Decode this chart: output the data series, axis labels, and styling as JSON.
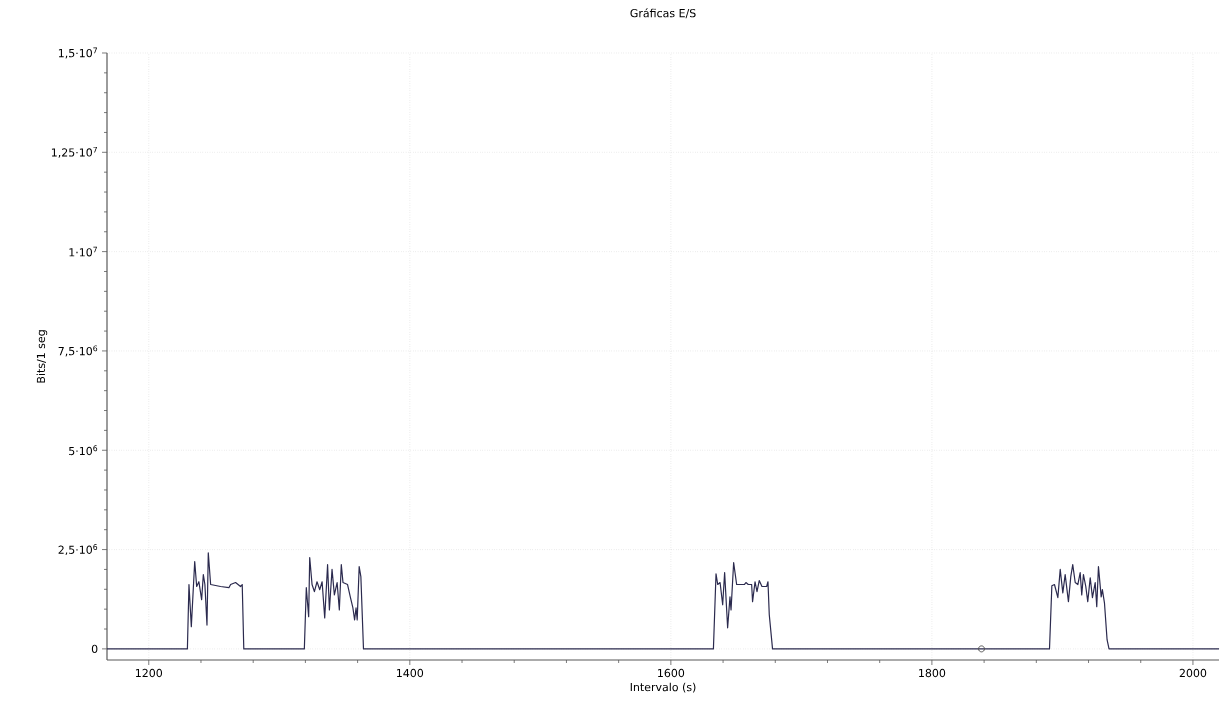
{
  "chart_data": {
    "type": "line",
    "title": "Gráficas E/S",
    "xlabel": "Intervalo (s)",
    "ylabel": "Bits/1 seg",
    "xlim": [
      1168,
      2020
    ],
    "ylim": [
      -280000,
      15000000
    ],
    "xticks": [
      1200,
      1400,
      1600,
      1800,
      2000
    ],
    "yticks": [
      {
        "value": 0,
        "label": "0"
      },
      {
        "value": 2500000,
        "label": "2,5·10$^{6}$"
      },
      {
        "value": 5000000,
        "label": "5·10$^{6}$"
      },
      {
        "value": 7500000,
        "label": "7,5·10$^{6}$"
      },
      {
        "value": 10000000,
        "label": "1·10$^{7}$"
      },
      {
        "value": 12500000,
        "label": "1,25·10$^{7}$"
      },
      {
        "value": 15000000,
        "label": "1,5·10$^{7}$"
      }
    ],
    "grid": true,
    "series": [
      {
        "color": "#2b2a4e",
        "marker": "none",
        "x": [
          1168,
          1229.6,
          1230.8,
          1232.6,
          1235.2,
          1236.7,
          1238.4,
          1240.5,
          1241.8,
          1243,
          1244.6,
          1245.6,
          1247.4,
          1255,
          1261.4,
          1262.7,
          1266.5,
          1270.3,
          1271.6,
          1272.8,
          1319.2,
          1320.7,
          1322.5,
          1323.3,
          1325.1,
          1326.9,
          1328.9,
          1331,
          1332.8,
          1334.8,
          1337,
          1338.4,
          1340.4,
          1342.2,
          1344.3,
          1346,
          1347.5,
          1348.8,
          1352.3,
          1354.4,
          1356.4,
          1357.7,
          1358.8,
          1359.7,
          1361.2,
          1362.5,
          1364.5,
          1632.6,
          1634.6,
          1635.9,
          1637.7,
          1639.7,
          1641.2,
          1643.5,
          1645.3,
          1646.1,
          1648.1,
          1650.4,
          1656.3,
          1657.5,
          1659.3,
          1661.9,
          1662.6,
          1664.5,
          1666,
          1667.7,
          1669.8,
          1673.4,
          1674.4,
          1675.4,
          1677.9,
          1890.1,
          1891.9,
          1893.9,
          1896.5,
          1898.3,
          1900.3,
          1902.1,
          1904.6,
          1906.4,
          1907.9,
          1909.8,
          1911.8,
          1913.6,
          1914.8,
          1916.1,
          1917.9,
          1919.4,
          1921.3,
          1923,
          1925.1,
          1926.3,
          1927.6,
          1929.7,
          1930.6,
          1932.2,
          1934.2,
          1935.7,
          2020
        ],
        "values": [
          0,
          0,
          1620000,
          560000,
          2200000,
          1570000,
          1690000,
          1240000,
          1870000,
          1620000,
          600000,
          2420000,
          1620000,
          1570000,
          1540000,
          1620000,
          1670000,
          1570000,
          1620000,
          0,
          0,
          1540000,
          810000,
          2300000,
          1620000,
          1440000,
          1690000,
          1490000,
          1690000,
          780000,
          2120000,
          980000,
          2000000,
          1360000,
          1670000,
          980000,
          2120000,
          1670000,
          1620000,
          1310000,
          1030000,
          730000,
          1030000,
          730000,
          2070000,
          1820000,
          0,
          0,
          1890000,
          1620000,
          1670000,
          1110000,
          1920000,
          530000,
          1310000,
          980000,
          2170000,
          1620000,
          1620000,
          1670000,
          1620000,
          1620000,
          1190000,
          1690000,
          1440000,
          1720000,
          1570000,
          1570000,
          1690000,
          860000,
          0,
          0,
          1590000,
          1620000,
          1290000,
          2000000,
          1410000,
          1870000,
          1190000,
          1820000,
          2120000,
          1670000,
          1620000,
          1920000,
          1360000,
          1870000,
          1570000,
          1190000,
          1790000,
          1290000,
          1670000,
          1060000,
          2070000,
          1310000,
          1490000,
          1160000,
          230000,
          0,
          0
        ]
      },
      {
        "type": "scatter",
        "color": "#555555",
        "marker": "circle",
        "x": [
          1838
        ],
        "values": [
          0
        ]
      }
    ]
  }
}
